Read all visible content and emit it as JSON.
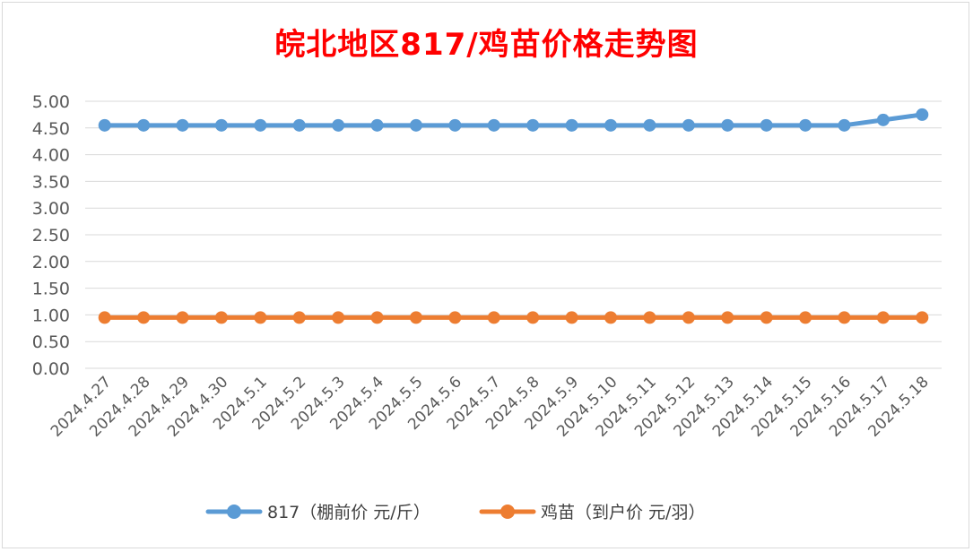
{
  "chart_data": {
    "type": "line",
    "title": "皖北地区817/鸡苗价格走势图",
    "xlabel": "",
    "ylabel": "",
    "categories": [
      "2024.4.27",
      "2024.4.28",
      "2024.4.29",
      "2024.4.30",
      "2024.5.1",
      "2024.5.2",
      "2024.5.3",
      "2024.5.4",
      "2024.5.5",
      "2024.5.6",
      "2024.5.7",
      "2024.5.8",
      "2024.5.9",
      "2024.5.10",
      "2024.5.11",
      "2024.5.12",
      "2024.5.13",
      "2024.5.14",
      "2024.5.15",
      "2024.5.16",
      "2024.5.17",
      "2024.5.18"
    ],
    "yticks": [
      "0.00",
      "0.50",
      "1.00",
      "1.50",
      "2.00",
      "2.50",
      "3.00",
      "3.50",
      "4.00",
      "4.50",
      "5.00"
    ],
    "ylim": [
      0,
      5
    ],
    "grid": true,
    "legend_position": "bottom",
    "series": [
      {
        "name": "817（棚前价 元/斤）",
        "color": "#5b9bd5",
        "values": [
          4.55,
          4.55,
          4.55,
          4.55,
          4.55,
          4.55,
          4.55,
          4.55,
          4.55,
          4.55,
          4.55,
          4.55,
          4.55,
          4.55,
          4.55,
          4.55,
          4.55,
          4.55,
          4.55,
          4.55,
          4.65,
          4.75
        ]
      },
      {
        "name": "鸡苗（到户价 元/羽）",
        "color": "#ed7d31",
        "values": [
          0.95,
          0.95,
          0.95,
          0.95,
          0.95,
          0.95,
          0.95,
          0.95,
          0.95,
          0.95,
          0.95,
          0.95,
          0.95,
          0.95,
          0.95,
          0.95,
          0.95,
          0.95,
          0.95,
          0.95,
          0.95,
          0.95
        ]
      }
    ]
  }
}
